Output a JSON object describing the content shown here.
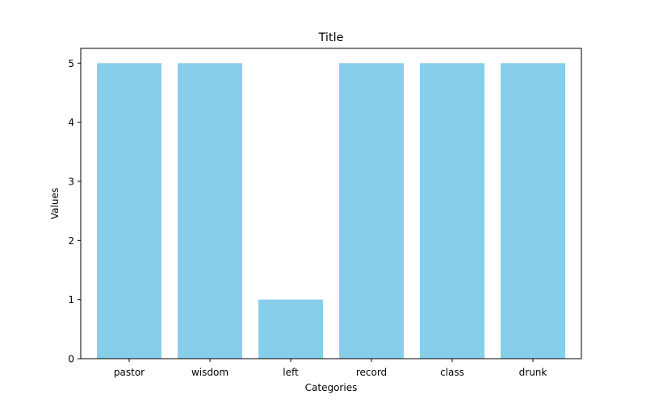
{
  "chart_data": {
    "type": "bar",
    "title": "Title",
    "xlabel": "Categories",
    "ylabel": "Values",
    "categories": [
      "pastor",
      "wisdom",
      "left",
      "record",
      "class",
      "drunk"
    ],
    "values": [
      5,
      5,
      1,
      5,
      5,
      5
    ],
    "ylim": [
      0,
      5.25
    ],
    "yticks": [
      0,
      1,
      2,
      3,
      4,
      5
    ],
    "bar_color": "#87CEEB",
    "grid": false,
    "legend": "none"
  }
}
